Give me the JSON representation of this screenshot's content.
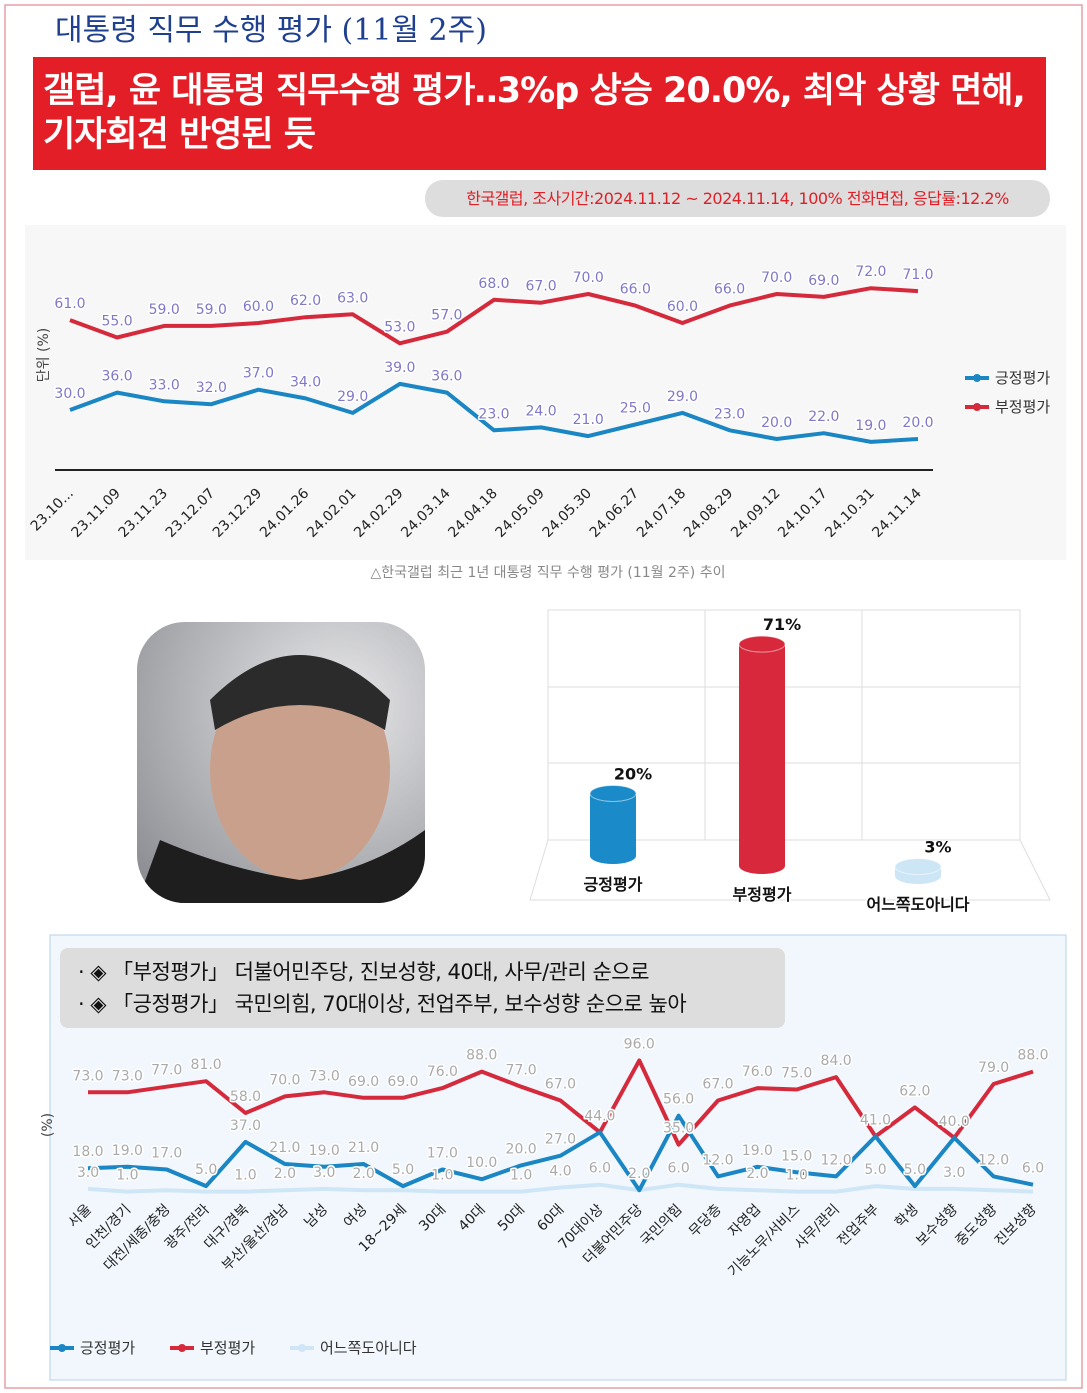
{
  "header": {
    "title": "대통령 직무 수행 평가 (11월 2주)",
    "headline": "갤럽, 윤 대통령 직무수행 평가‥3%p 상승 20.0%, 최악 상황 면해, 기자회견 반영된 듯",
    "source": "한국갤럽, 조사기간:2024.11.12 ~ 2024.11.14, 100% 전화면접, 응답률:12.2%"
  },
  "caption": "△한국갤럽 최근 1년 대통령 직무 수행 평가 (11월 2주) 추이",
  "bullets": [
    "· ◈ 「부정평가」 더불어민주당, 진보성향, 40대, 사무/관리 순으로",
    "· ◈ 「긍정평가」 국민의힘, 70대이상, 전업주부, 보수성향 순으로 높아"
  ],
  "chart_data": [
    {
      "type": "line",
      "y_label": "단위 (%)",
      "categories": [
        "23.10...",
        "23.11.09",
        "23.11.23",
        "23.12.07",
        "23.12.29",
        "24.01.26",
        "24.02.01",
        "24.02.29",
        "24.03.14",
        "24.04.18",
        "24.05.09",
        "24.05.30",
        "24.06.27",
        "24.07.18",
        "24.08.29",
        "24.09.12",
        "24.10.17",
        "24.10.31",
        "24.11.14"
      ],
      "series": [
        {
          "name": "긍정평가",
          "color": "#1a86c4",
          "values": [
            30,
            36,
            33,
            32,
            37,
            34,
            29,
            39,
            36,
            23,
            24,
            21,
            25,
            29,
            23,
            20,
            22,
            19,
            20
          ],
          "value_labels": [
            "30.0",
            "36.0",
            "33.0",
            "32.0",
            "37.0",
            "34.0",
            "29.0",
            "39.0",
            "36.0",
            "23.0",
            "24.0",
            "21.0",
            "25.0",
            "29.0",
            "23.0",
            "20.0",
            "22.0",
            "19.0",
            "20.0"
          ]
        },
        {
          "name": "부정평가",
          "color": "#d42a3c",
          "values": [
            61,
            55,
            59,
            59,
            60,
            62,
            63,
            53,
            57,
            68,
            67,
            70,
            66,
            60,
            66,
            70,
            69,
            72,
            71
          ],
          "value_labels": [
            "61.0",
            "55.0",
            "59.0",
            "59.0",
            "60.0",
            "62.0",
            "63.0",
            "53.0",
            "57.0",
            "68.0",
            "67.0",
            "70.0",
            "66.0",
            "60.0",
            "66.0",
            "70.0",
            "69.0",
            "72.0",
            "71.0"
          ]
        }
      ],
      "ylim": [
        10,
        90
      ],
      "legend": "right"
    },
    {
      "type": "bar",
      "categories": [
        "긍정평가",
        "부정평가",
        "어느쪽도아니다"
      ],
      "values": [
        20,
        71,
        3
      ],
      "value_labels": [
        "20%",
        "71%",
        "3%"
      ],
      "colors": [
        "#1a8ac8",
        "#d8283c",
        "#cde6f6"
      ],
      "ylim": [
        0,
        80
      ]
    },
    {
      "type": "line",
      "y_label": "(%)",
      "categories": [
        "서울",
        "인천/경기",
        "대전/세종/충청",
        "광주/전라",
        "대구/경북",
        "부산/울산/경남",
        "남성",
        "여성",
        "18~29세",
        "30대",
        "40대",
        "50대",
        "60대",
        "70대이상",
        "더불어민주당",
        "국민의힘",
        "무당층",
        "자영업",
        "기능노무/서비스",
        "사무/관리",
        "전업주부",
        "학생",
        "보수성향",
        "중도성향",
        "진보성향"
      ],
      "series": [
        {
          "name": "긍정평가",
          "color": "#1a86c4",
          "values": [
            18,
            19,
            17,
            5,
            37,
            21,
            19,
            21,
            5,
            17,
            10,
            20,
            27,
            44,
            2,
            56,
            12,
            19,
            15,
            12,
            41,
            5,
            40,
            12,
            6
          ],
          "value_labels": [
            "18.0",
            "19.0",
            "17.0",
            "5.0",
            "37.0",
            "21.0",
            "19.0",
            "21.0",
            "5.0",
            "17.0",
            "10.0",
            "20.0",
            "27.0",
            "44.0",
            "2.0",
            "56.0",
            "12.0",
            "19.0",
            "15.0",
            "12.0",
            "41.0",
            "5.0",
            "40.0",
            "12.0",
            "6.0"
          ]
        },
        {
          "name": "부정평가",
          "color": "#d42a3c",
          "values": [
            73,
            73,
            77,
            81,
            58,
            70,
            73,
            69,
            69,
            76,
            88,
            77,
            67,
            44,
            96,
            35,
            67,
            76,
            75,
            84,
            41,
            62,
            40,
            79,
            88
          ],
          "value_labels": [
            "73.0",
            "73.0",
            "77.0",
            "81.0",
            "58.0",
            "70.0",
            "73.0",
            "69.0",
            "69.0",
            "76.0",
            "88.0",
            "77.0",
            "67.0",
            null,
            "96.0",
            "35.0",
            "67.0",
            "76.0",
            "75.0",
            "84.0",
            null,
            "62.0",
            null,
            "79.0",
            "88.0"
          ]
        },
        {
          "name": "어느쪽도아니다",
          "color": "#cfe6f7",
          "values": [
            3,
            1,
            2,
            1,
            1,
            2,
            3,
            2,
            2,
            1,
            1,
            1,
            4,
            6,
            2,
            6,
            3,
            2,
            1,
            1,
            5,
            3,
            3,
            2,
            1
          ],
          "value_labels": [
            "3.0",
            "1.0",
            null,
            null,
            "1.0",
            "2.0",
            "3.0",
            "2.0",
            null,
            "1.0",
            null,
            "1.0",
            "4.0",
            "6.0",
            null,
            "6.0",
            null,
            "2.0",
            "1.0",
            null,
            "5.0",
            null,
            "3.0",
            null,
            null
          ]
        }
      ],
      "ylim": [
        0,
        100
      ],
      "legend": "bottom"
    }
  ]
}
